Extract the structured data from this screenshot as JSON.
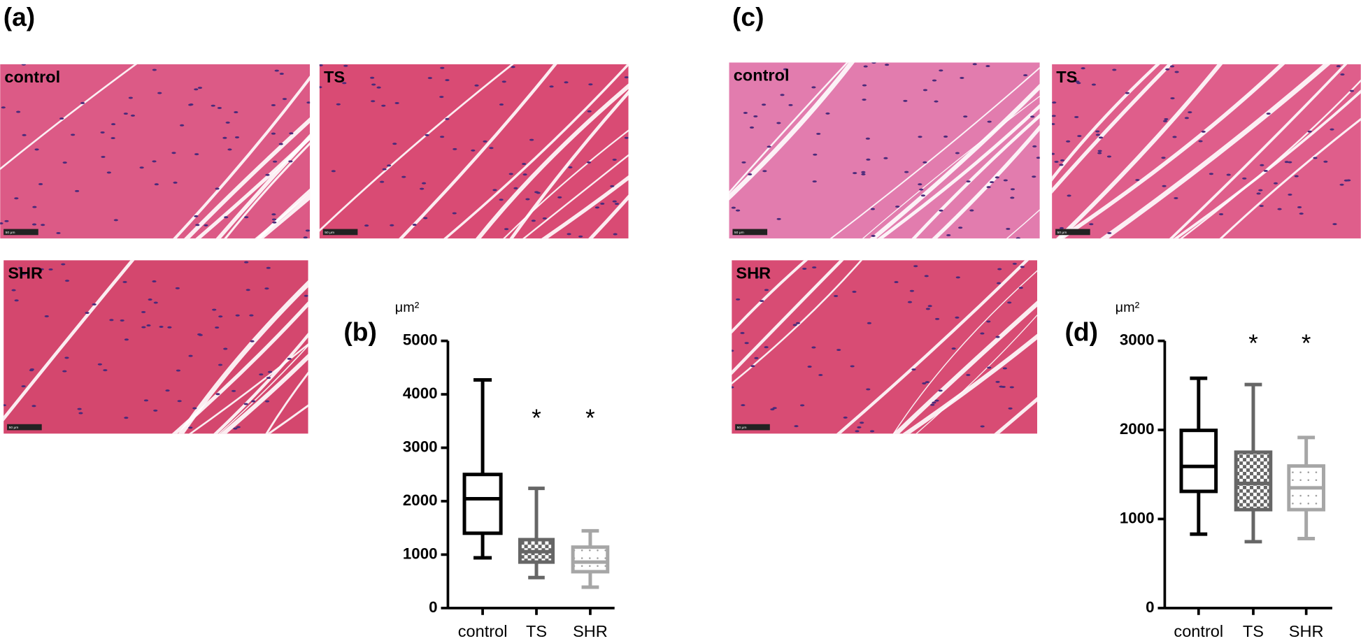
{
  "panels": [
    {
      "label": "(a)",
      "images": [
        {
          "label": "control",
          "scale": "50 μm"
        },
        {
          "label": "TS",
          "scale": "50 μm"
        },
        {
          "label": "SHR",
          "scale": "50 μm"
        }
      ]
    },
    {
      "label": "(c)",
      "images": [
        {
          "label": "control",
          "scale": "50 μm"
        },
        {
          "label": "TS",
          "scale": "50 μm"
        },
        {
          "label": "SHR",
          "scale": "50 μm"
        }
      ]
    }
  ],
  "chart_data": [
    {
      "type": "box",
      "panel_label": "(b)",
      "y_label": "μm²",
      "categories": [
        "control",
        "TS",
        "SHR"
      ],
      "boxes": [
        {
          "min": 940,
          "q1": 1400,
          "median": 2045,
          "q3": 2500,
          "max": 4270
        },
        {
          "min": 570,
          "q1": 860,
          "median": 1055,
          "q3": 1280,
          "max": 2240
        },
        {
          "min": 390,
          "q1": 680,
          "median": 860,
          "q3": 1140,
          "max": 1445
        }
      ],
      "colors": [
        "#000000",
        "#666666",
        "#a6a6a6"
      ],
      "annotations": [
        "*",
        "*"
      ],
      "ylim": [
        0,
        5000
      ],
      "yticks": [
        0,
        1000,
        2000,
        3000,
        4000,
        5000
      ]
    },
    {
      "type": "box",
      "panel_label": "(d)",
      "y_label": "μm²",
      "categories": [
        "control",
        "TS",
        "SHR"
      ],
      "boxes": [
        {
          "min": 830,
          "q1": 1310,
          "median": 1590,
          "q3": 1995,
          "max": 2580
        },
        {
          "min": 745,
          "q1": 1105,
          "median": 1400,
          "q3": 1750,
          "max": 2510
        },
        {
          "min": 780,
          "q1": 1105,
          "median": 1350,
          "q3": 1595,
          "max": 1915
        }
      ],
      "colors": [
        "#000000",
        "#666666",
        "#a6a6a6"
      ],
      "annotations": [
        "*",
        "*"
      ],
      "ylim": [
        0,
        3000
      ],
      "yticks": [
        0,
        1000,
        2000,
        3000
      ]
    }
  ]
}
